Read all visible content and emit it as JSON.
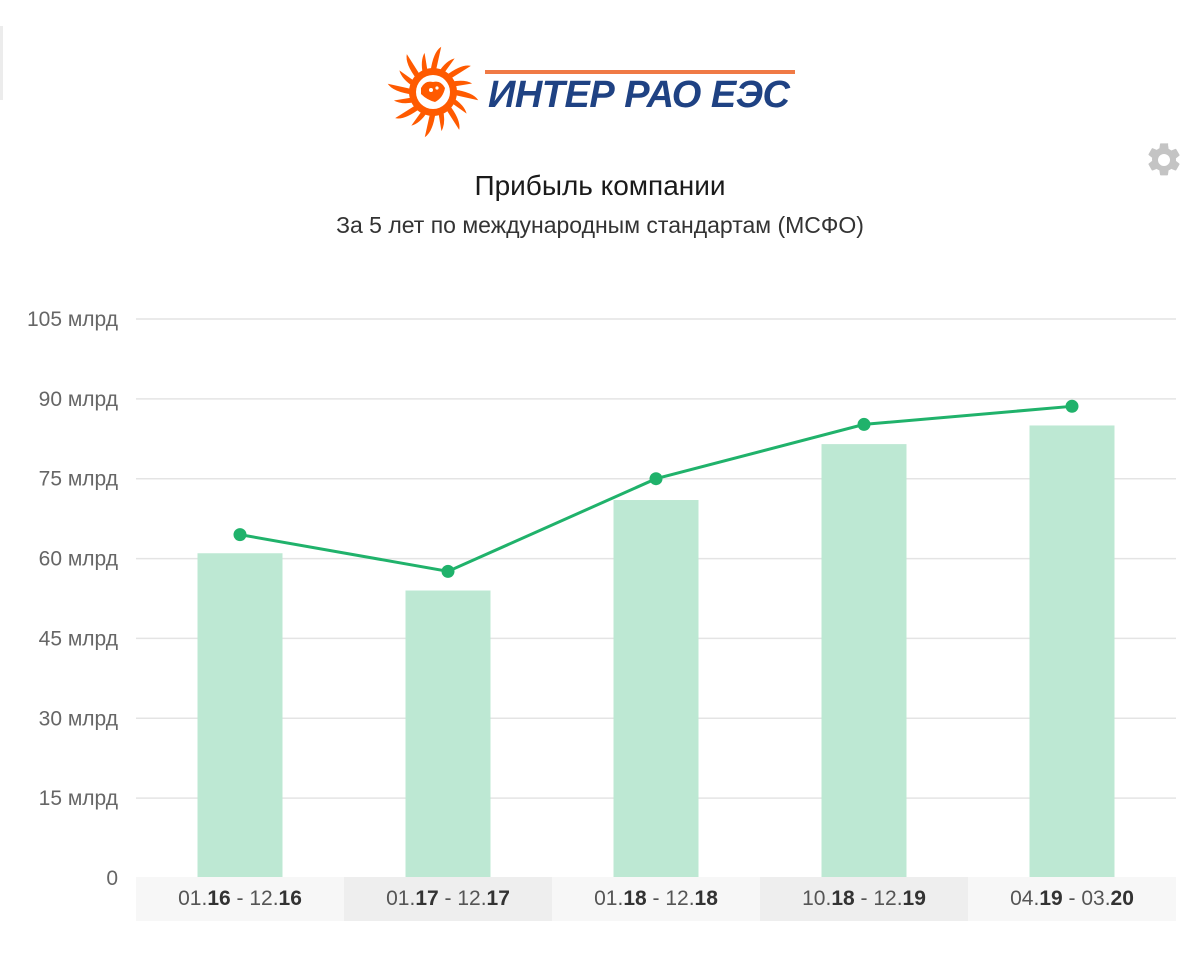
{
  "logo": {
    "text": "ИНТЕР РАО ЕЭС",
    "colors": {
      "sun": "#ff5a00",
      "text": "#1f4283",
      "stripe": "#f07a45"
    }
  },
  "settings": {
    "icon": "gear-icon"
  },
  "header": {
    "title": "Прибыль компании",
    "subtitle": "За 5 лет по международным стандартам (МСФО)"
  },
  "chart_data": {
    "type": "bar",
    "title": "Прибыль компании",
    "subtitle": "За 5 лет по международным стандартам (МСФО)",
    "categories": [
      "01.16 - 12.16",
      "01.17 - 12.17",
      "01.18 - 12.18",
      "10.18 - 12.19",
      "04.19 - 03.20"
    ],
    "category_parts": [
      [
        "01.",
        "16",
        " - 12.",
        "16"
      ],
      [
        "01.",
        "17",
        " - 12.",
        "17"
      ],
      [
        "01.",
        "18",
        " - 12.",
        "18"
      ],
      [
        "10.",
        "18",
        " - 12.",
        "19"
      ],
      [
        "04.",
        "19",
        " - 03.",
        "20"
      ]
    ],
    "series": [
      {
        "type": "bar",
        "values": [
          61,
          54,
          71,
          81.5,
          85
        ],
        "color": "#bde8d3"
      },
      {
        "type": "line",
        "values": [
          64.5,
          57.6,
          75,
          85.2,
          88.6
        ],
        "color": "#20b26b"
      }
    ],
    "yticks": [
      "0",
      "15 млрд",
      "30 млрд",
      "45 млрд",
      "60 млрд",
      "75 млрд",
      "90 млрд",
      "105 млрд"
    ],
    "ytick_values": [
      0,
      15,
      30,
      45,
      60,
      75,
      90,
      105
    ],
    "ylim": [
      0,
      105
    ],
    "grid": true,
    "legend": "none",
    "category_band_colors": [
      "#f7f7f7",
      "#eeeeee"
    ]
  }
}
